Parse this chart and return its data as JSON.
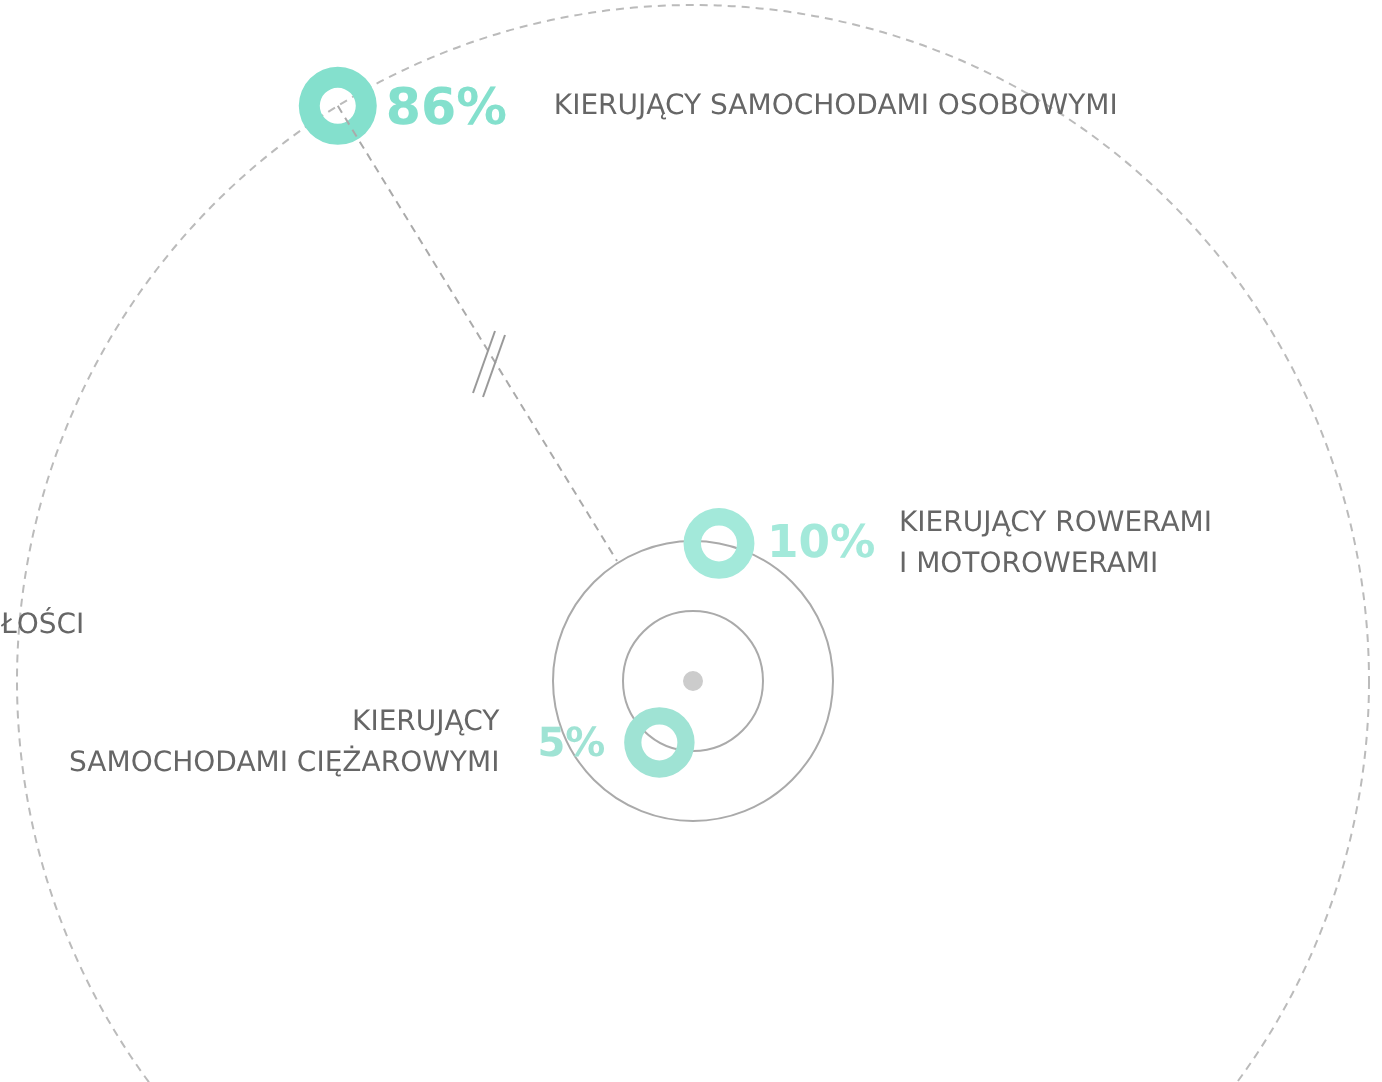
{
  "chart_data": {
    "type": "other",
    "categories": [
      "KIERUJĄCY SAMOCHODAMI OSOBOWYMI",
      "KIERUJĄCY ROWERAMI\nI MOTOROWERAMI",
      "KIERUJĄCY\nSAMOCHODAMI CIĘŻAROWYMI"
    ],
    "values": [
      86,
      10,
      5
    ],
    "value_labels": [
      "86%",
      "10%",
      "5%"
    ],
    "colors": [
      "#84e0cd",
      "#a3e9da",
      "#9fe3d4"
    ],
    "annotations": [
      "ŁOŚCI"
    ]
  }
}
